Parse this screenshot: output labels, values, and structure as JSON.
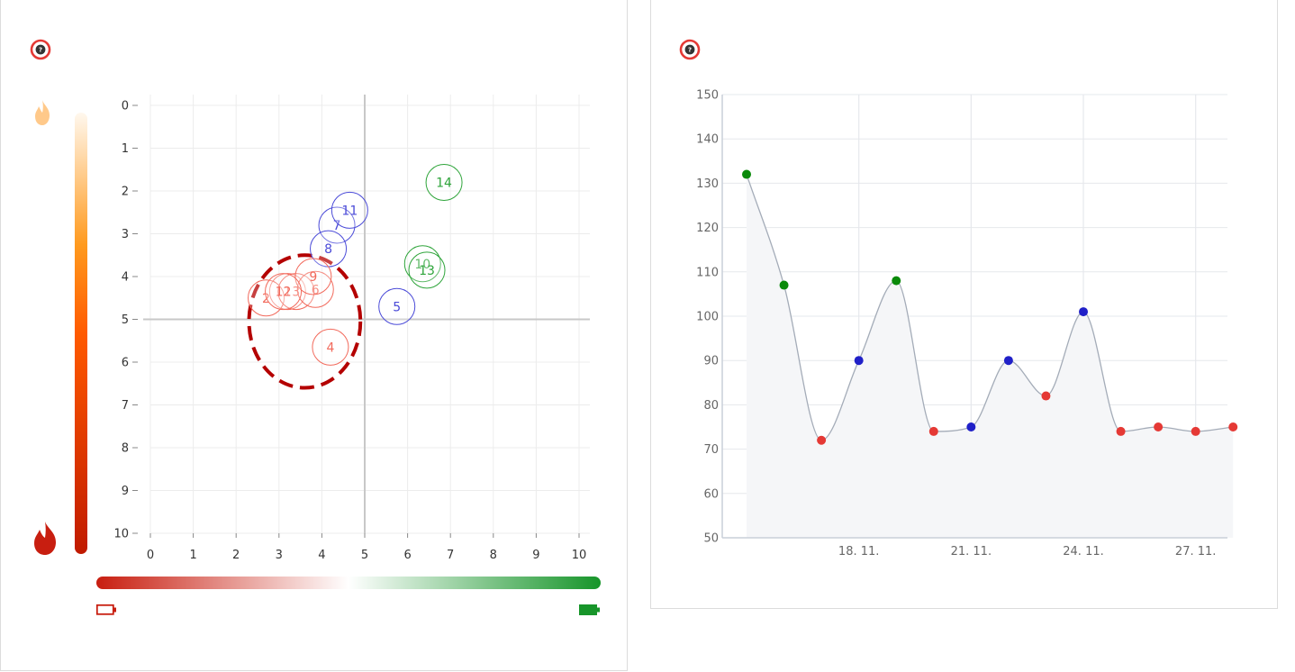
{
  "help_icon": "help-circle-icon",
  "help_color": "#e53935",
  "heat_icon": "flame-icon",
  "energy_icon": "battery-icon",
  "colors": {
    "red": "#e53935",
    "blue": "#2b2bd6",
    "green": "#1a9a2a",
    "dark_red": "#b40000",
    "heat_top": "#fff8ee",
    "heat_mid": "#ff9a1e",
    "heat_low": "#ff5a00",
    "heat_bottom": "#c01a00",
    "energy_left": "#c81e10",
    "energy_right": "#17952a"
  },
  "chart_data": [
    {
      "type": "scatter",
      "title": "",
      "xlabel": "",
      "ylabel": "",
      "xlim": [
        0,
        10
      ],
      "ylim": [
        0,
        10
      ],
      "y_reversed": true,
      "x_ticks": [
        "0",
        "1",
        "2",
        "3",
        "4",
        "5",
        "6",
        "7",
        "8",
        "9",
        "10"
      ],
      "y_ticks": [
        "0",
        "1",
        "2",
        "3",
        "4",
        "5",
        "6",
        "7",
        "8",
        "9",
        "10"
      ],
      "grid": true,
      "crosshair": [
        5,
        5
      ],
      "highlight_circle": {
        "cx": 3.6,
        "cy": 5.05,
        "rx": 1.3,
        "ry": 1.55,
        "color": "dark_red",
        "dashed": true
      },
      "points": [
        {
          "label": "1",
          "x": 3.2,
          "y": 4.35,
          "color": "red"
        },
        {
          "label": "2",
          "x": 2.7,
          "y": 4.5,
          "color": "red"
        },
        {
          "label": "3",
          "x": 3.4,
          "y": 4.35,
          "color": "red"
        },
        {
          "label": "4",
          "x": 4.2,
          "y": 5.65,
          "color": "red"
        },
        {
          "label": "5",
          "x": 5.75,
          "y": 4.7,
          "color": "blue"
        },
        {
          "label": "6",
          "x": 3.85,
          "y": 4.3,
          "color": "red"
        },
        {
          "label": "7",
          "x": 4.35,
          "y": 2.8,
          "color": "blue"
        },
        {
          "label": "8",
          "x": 4.15,
          "y": 3.35,
          "color": "blue"
        },
        {
          "label": "9",
          "x": 3.8,
          "y": 4.0,
          "color": "red"
        },
        {
          "label": "10",
          "x": 6.35,
          "y": 3.7,
          "color": "green"
        },
        {
          "label": "11",
          "x": 4.65,
          "y": 2.45,
          "color": "blue"
        },
        {
          "label": "12",
          "x": 3.1,
          "y": 4.35,
          "color": "red"
        },
        {
          "label": "13",
          "x": 6.45,
          "y": 3.85,
          "color": "green"
        },
        {
          "label": "14",
          "x": 6.85,
          "y": 1.8,
          "color": "green"
        }
      ]
    },
    {
      "type": "line",
      "title": "",
      "xlabel": "",
      "ylabel": "",
      "ylim": [
        50,
        150
      ],
      "y_ticks": [
        50,
        60,
        70,
        80,
        90,
        100,
        110,
        120,
        130,
        140,
        150
      ],
      "x_tick_labels": [
        "18. 11.",
        "21. 11.",
        "24. 11.",
        "27. 11."
      ],
      "x_tick_days": [
        18,
        21,
        24,
        27
      ],
      "x_range_days": [
        14.35,
        27.85
      ],
      "smooth": true,
      "area_fill": true,
      "grid": true,
      "points": [
        {
          "day": 15,
          "value": 132,
          "color": "green"
        },
        {
          "day": 16,
          "value": 107,
          "color": "green"
        },
        {
          "day": 17,
          "value": 72,
          "color": "red"
        },
        {
          "day": 18,
          "value": 90,
          "color": "blue"
        },
        {
          "day": 19,
          "value": 108,
          "color": "green"
        },
        {
          "day": 20,
          "value": 74,
          "color": "red"
        },
        {
          "day": 21,
          "value": 75,
          "color": "blue"
        },
        {
          "day": 22,
          "value": 90,
          "color": "blue"
        },
        {
          "day": 23,
          "value": 82,
          "color": "red"
        },
        {
          "day": 24,
          "value": 101,
          "color": "blue"
        },
        {
          "day": 25,
          "value": 74,
          "color": "red"
        },
        {
          "day": 26,
          "value": 75,
          "color": "red"
        },
        {
          "day": 27,
          "value": 74,
          "color": "red"
        },
        {
          "day": 28,
          "value": 75,
          "color": "red"
        }
      ]
    }
  ]
}
